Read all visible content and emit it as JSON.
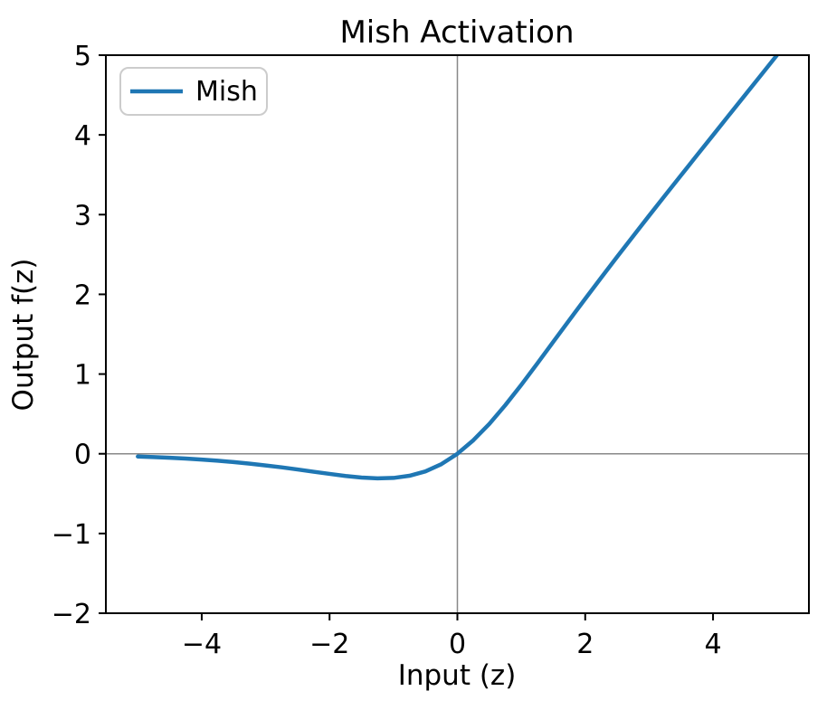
{
  "chart_data": {
    "type": "line",
    "title": "Mish Activation",
    "xlabel": "Input (z)",
    "ylabel": "Output f(z)",
    "xlim": [
      -5.5,
      5.5
    ],
    "ylim": [
      -2,
      5
    ],
    "xticks": [
      -4,
      -2,
      0,
      2,
      4
    ],
    "yticks": [
      -2,
      -1,
      0,
      1,
      2,
      3,
      4,
      5
    ],
    "grid": false,
    "reference_lines": {
      "axhline_y": 0,
      "axvline_x": 0,
      "color": "#888888"
    },
    "legend": {
      "position": "upper left",
      "entries": [
        {
          "label": "Mish",
          "color": "#1f77b4"
        }
      ]
    },
    "colors": {
      "background": "#ffffff",
      "spine": "#000000",
      "legend_border": "#cccccc"
    },
    "series": [
      {
        "name": "Mish",
        "color": "#1f77b4",
        "linewidth": 4.5,
        "x": [
          -5,
          -4.75,
          -4.5,
          -4.25,
          -4,
          -3.75,
          -3.5,
          -3.25,
          -3,
          -2.75,
          -2.5,
          -2.25,
          -2,
          -1.75,
          -1.5,
          -1.25,
          -1,
          -0.75,
          -0.5,
          -0.25,
          0,
          0.25,
          0.5,
          0.75,
          1,
          1.25,
          1.5,
          1.75,
          2,
          2.25,
          2.5,
          2.75,
          3,
          3.25,
          3.5,
          3.75,
          4,
          4.25,
          4.5,
          4.75,
          5
        ],
        "y": [
          -0.034,
          -0.041,
          -0.05,
          -0.06,
          -0.073,
          -0.087,
          -0.104,
          -0.124,
          -0.146,
          -0.17,
          -0.197,
          -0.225,
          -0.252,
          -0.278,
          -0.298,
          -0.308,
          -0.303,
          -0.276,
          -0.221,
          -0.13,
          0,
          0.17,
          0.375,
          0.61,
          0.865,
          1.132,
          1.404,
          1.675,
          1.944,
          2.209,
          2.471,
          2.73,
          2.987,
          3.241,
          3.494,
          3.746,
          3.997,
          4.248,
          4.499,
          4.749,
          5.0
        ]
      }
    ]
  }
}
